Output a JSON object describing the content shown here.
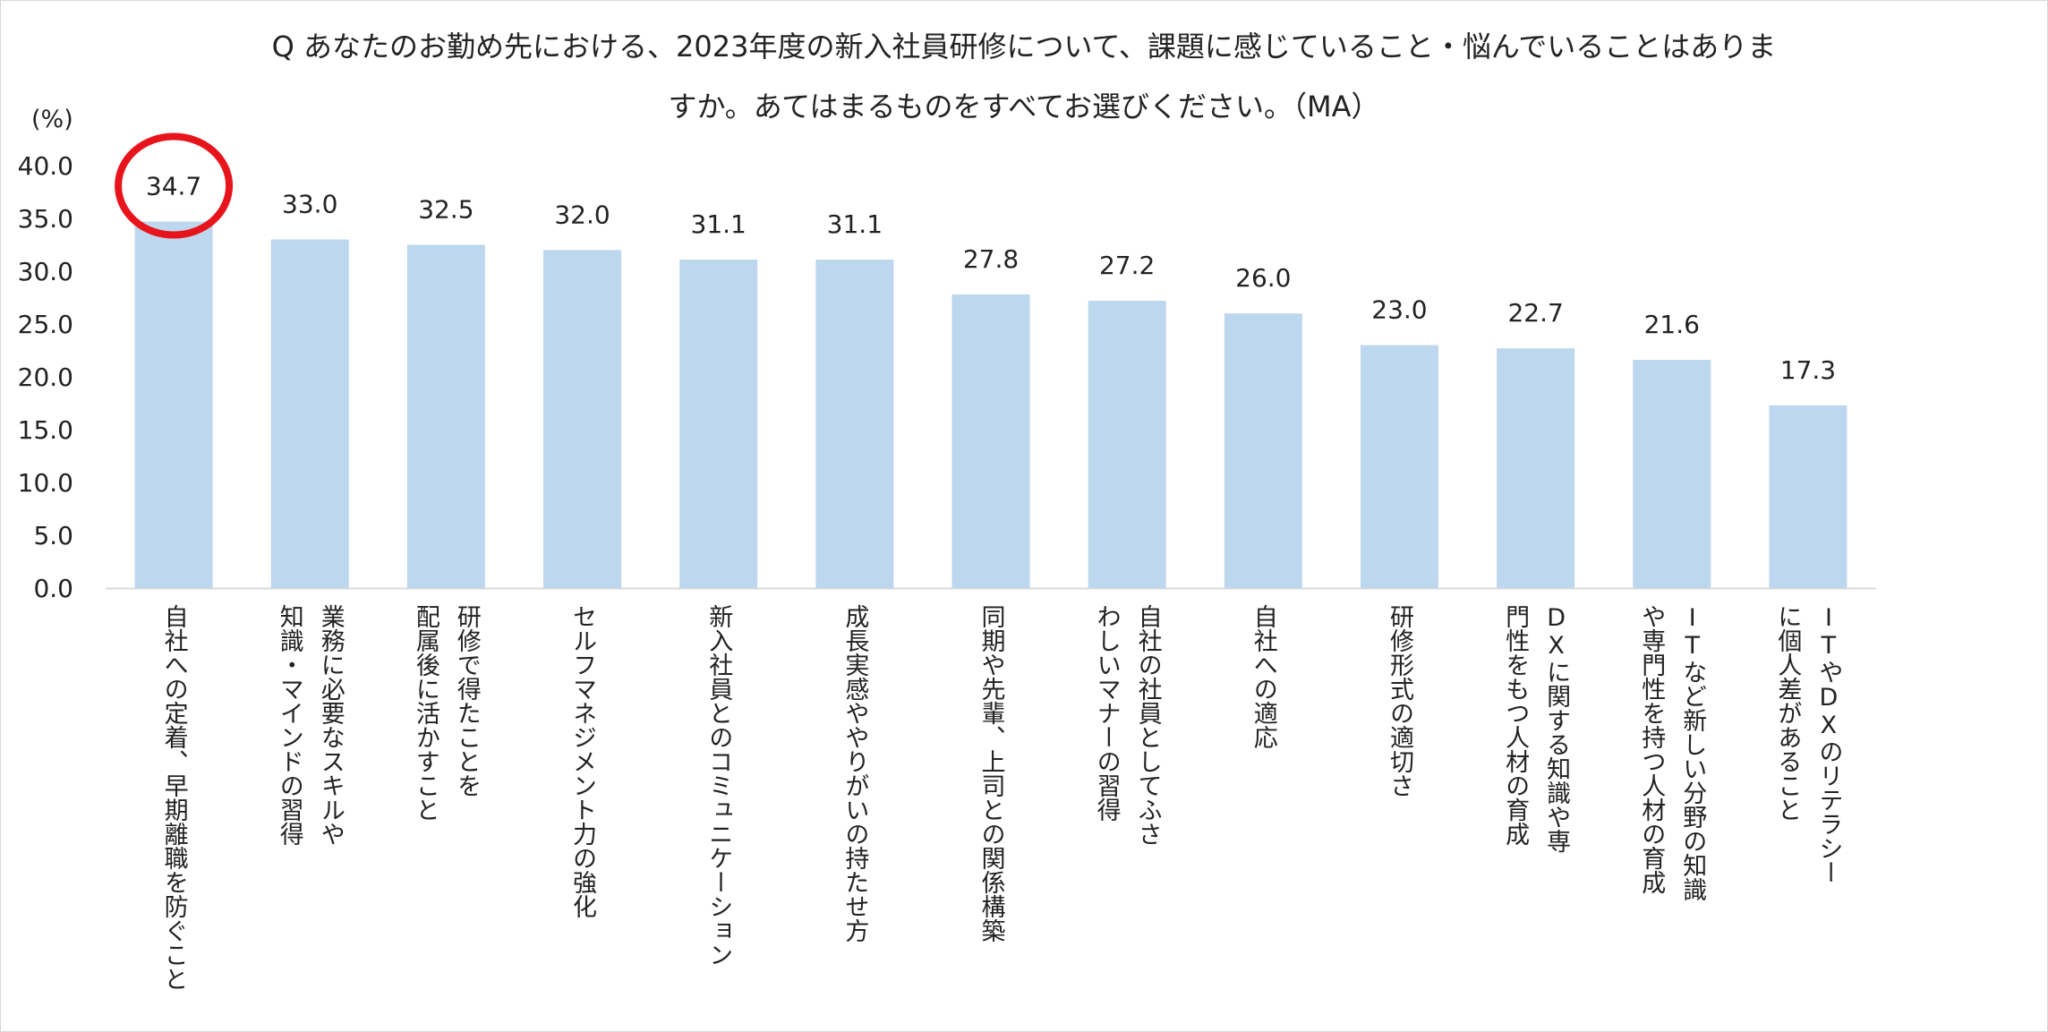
{
  "chart_data": {
    "type": "bar",
    "title_lines": [
      "Q あなたのお勤め先における、2023年度の新入社員研修について、課題に感じていること・悩んでいることはありま",
      "すか。あてはまるものをすべてお選びください。（MA）"
    ],
    "ylabel": "(%)",
    "ylim": [
      0,
      40
    ],
    "yticks": [
      "0.0",
      "5.0",
      "10.0",
      "15.0",
      "20.0",
      "25.0",
      "30.0",
      "35.0",
      "40.0"
    ],
    "bar_color": "#bdd7ee",
    "highlight_color": "#e8141b",
    "highlight_index": 0,
    "categories": [
      [
        "自社への定着、早期離職を防ぐこと"
      ],
      [
        "業務に必要なスキルや",
        "知識・マインドの習得"
      ],
      [
        "研修で得たことを",
        "配属後に活かすこと"
      ],
      [
        "セルフマネジメント力の強化"
      ],
      [
        "新入社員とのコミュニケーション"
      ],
      [
        "成長実感ややりがいの持たせ方"
      ],
      [
        "同期や先輩、上司との関係構築"
      ],
      [
        "自社の社員としてふさ",
        "わしいマナーの習得"
      ],
      [
        "自社への適応"
      ],
      [
        "研修形式の適切さ"
      ],
      [
        "DXに関する知識や専",
        "門性をもつ人材の育成"
      ],
      [
        "ITなど新しい分野の知識",
        "や専門性を持つ人材の育成"
      ],
      [
        "ITやDXのリテラシー",
        "に個人差があること"
      ]
    ],
    "values": [
      34.7,
      33.0,
      32.5,
      32.0,
      31.1,
      31.1,
      27.8,
      27.2,
      26.0,
      23.0,
      22.7,
      21.6,
      17.3
    ],
    "value_labels": [
      "34.7",
      "33.0",
      "32.5",
      "32.0",
      "31.1",
      "31.1",
      "27.8",
      "27.2",
      "26.0",
      "23.0",
      "22.7",
      "21.6",
      "17.3"
    ],
    "grid": false,
    "legend": "none"
  }
}
